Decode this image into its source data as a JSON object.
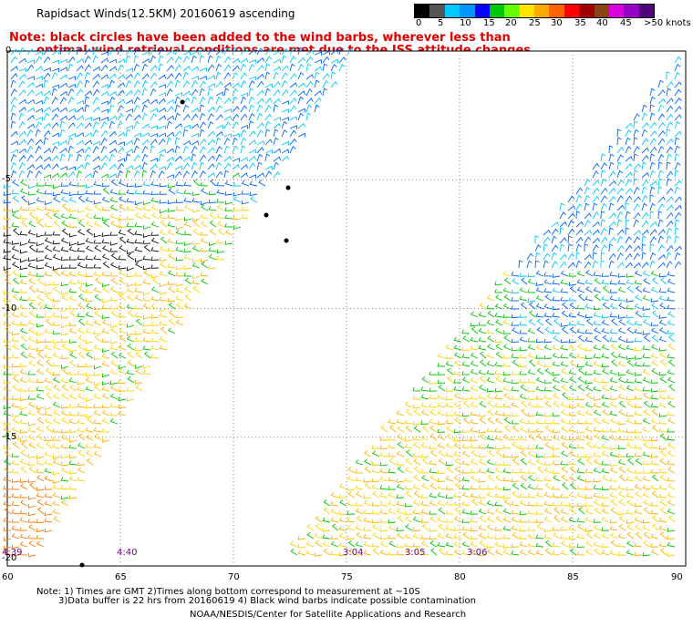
{
  "title": "Rapidsact Winds(12.5KM) 20160619 ascending",
  "note_line1": "Note: black circles have been added to the wind barbs, wherever less than",
  "note_line2": "optimal wind retrieval conditions are met due to the ISS attitude changes.",
  "legend": {
    "labels": [
      "0",
      "5",
      "10",
      "15",
      "20",
      "25",
      "30",
      "35",
      "40",
      "45",
      ">50 knots"
    ],
    "colors": [
      "#000000",
      "#555555",
      "#00c8ff",
      "#0096ff",
      "#0000ff",
      "#00c800",
      "#64ff00",
      "#ffe600",
      "#ffaa00",
      "#ff6400",
      "#ff0000",
      "#a00000",
      "#8b4513",
      "#dc00dc",
      "#9600c8",
      "#500078"
    ]
  },
  "y_labels": [
    "0",
    "-5",
    "-10",
    "-15",
    "-20"
  ],
  "x_labels": [
    "60",
    "65",
    "70",
    "75",
    "80",
    "85",
    "90"
  ],
  "time_labels": [
    "4:39",
    "4:40",
    "3:04",
    "3:05",
    "3:06"
  ],
  "footnote_line1": "Note: 1) Times are GMT 2)Times along bottom correspond to measurement at ~10S",
  "footnote_line2": "3)Data buffer is 22 hrs from 20160619 4) Black wind barbs indicate possible contamination",
  "credit": "NOAA/NESDIS/Center for Satellite Applications and Research",
  "map_extent": {
    "lon": [
      60,
      90
    ],
    "lat": [
      -20,
      0
    ]
  }
}
